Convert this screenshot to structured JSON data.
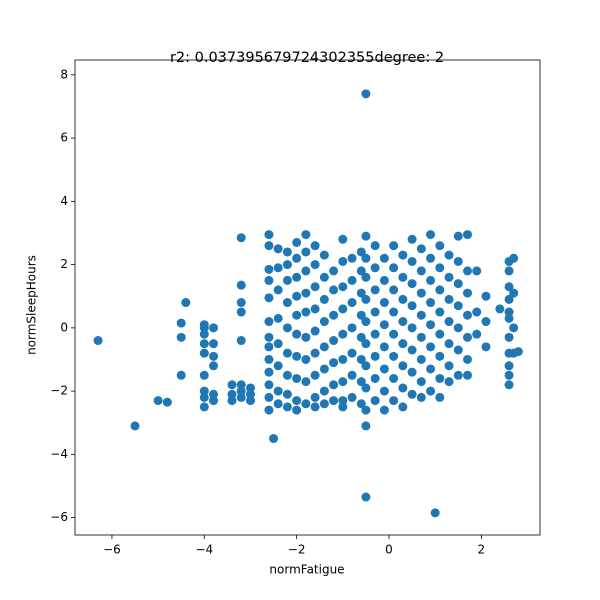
{
  "chart_data": {
    "type": "scatter",
    "title": "r2: 0.037395679724302355degree: 2",
    "x_label": "normFatigue",
    "y_label": "normSleepHours",
    "color": "#1f77b4",
    "xlim": [
      -6.8,
      3.27
    ],
    "ylim": [
      -6.55,
      8.47
    ],
    "xticks": [
      {
        "value": -6,
        "label": "−6"
      },
      {
        "value": -4,
        "label": "−4"
      },
      {
        "value": -2,
        "label": "−2"
      },
      0,
      2
    ],
    "yticks": [
      {
        "value": -6,
        "label": "−6"
      },
      {
        "value": -4,
        "label": "−4"
      },
      {
        "value": -2,
        "label": "−2"
      },
      0,
      2,
      4,
      6,
      8
    ],
    "x": [
      -6.3,
      -5.5,
      -5,
      -4.8,
      -4.4,
      -4.5,
      -4.5,
      -4.5,
      -0.5,
      -0.5,
      1,
      -2.5,
      -0.5,
      -4,
      -4,
      -4,
      -4,
      -4,
      -4,
      -4,
      -4,
      -4,
      -3.8,
      -3.8,
      -3.8,
      -3.8,
      -3.8,
      -3.8,
      -3.4,
      -3.4,
      -3.4,
      -3.2,
      -3.2,
      -3.2,
      -3.2,
      -3.2,
      -3.2,
      -3.2,
      -3.2,
      -3,
      -3,
      -3,
      -2.6,
      -2.6,
      -2.6,
      -2.6,
      -2.6,
      -2.6,
      -2.6,
      -2.6,
      -2.6,
      -2.6,
      -2.6,
      -2.6,
      -2.6,
      -2.4,
      -2.4,
      -2.4,
      -2.4,
      -2.4,
      -2.4,
      -2.4,
      -2.4,
      -2.2,
      -2.2,
      -2.2,
      -2.2,
      -2.2,
      -2.2,
      -2.2,
      -2.2,
      -2.2,
      -2,
      -2,
      -2,
      -2,
      -2,
      -2,
      -2,
      -2,
      -2,
      -2,
      -1.8,
      -1.8,
      -1.8,
      -1.8,
      -1.8,
      -1.8,
      -1.8,
      -1.8,
      -1.8,
      -1.6,
      -1.6,
      -1.6,
      -1.6,
      -1.6,
      -1.6,
      -1.6,
      -1.6,
      -1.6,
      -1.4,
      -1.4,
      -1.4,
      -1.4,
      -1.4,
      -1.4,
      -1.4,
      -1.4,
      -1.2,
      -1.2,
      -1.2,
      -1.2,
      -1.2,
      -1.2,
      -1.2,
      -1,
      -1,
      -1,
      -1,
      -1,
      -1,
      -1,
      -1,
      -1,
      -0.8,
      -0.8,
      -0.8,
      -0.8,
      -0.8,
      -0.8,
      -0.8,
      -0.6,
      -0.6,
      -0.6,
      -0.6,
      -0.6,
      -0.6,
      -0.6,
      -0.6,
      -0.5,
      -0.5,
      -0.5,
      -0.5,
      -0.5,
      -0.5,
      -0.5,
      -0.5,
      -0.5,
      -0.3,
      -0.3,
      -0.3,
      -0.3,
      -0.3,
      -0.3,
      -0.3,
      -0.3,
      -0.1,
      -0.1,
      -0.1,
      -0.1,
      -0.1,
      -0.1,
      -0.1,
      -0.1,
      0.1,
      0.1,
      0.1,
      0.1,
      0.1,
      0.1,
      0.1,
      0.1,
      0.3,
      0.3,
      0.3,
      0.3,
      0.3,
      0.3,
      0.3,
      0.3,
      0.5,
      0.5,
      0.5,
      0.5,
      0.5,
      0.5,
      0.5,
      0.5,
      0.7,
      0.7,
      0.7,
      0.7,
      0.7,
      0.7,
      0.7,
      0.7,
      0.9,
      0.9,
      0.9,
      0.9,
      0.9,
      0.9,
      0.9,
      0.9,
      1.1,
      1.1,
      1.1,
      1.1,
      1.1,
      1.1,
      1.1,
      1.1,
      1.3,
      1.3,
      1.3,
      1.3,
      1.3,
      1.3,
      1.3,
      1.5,
      1.5,
      1.5,
      1.5,
      1.5,
      1.5,
      1.5,
      1.7,
      1.7,
      1.7,
      1.7,
      1.7,
      1.7,
      1.7,
      1.9,
      1.9,
      1.9,
      2.1,
      2.1,
      2.1,
      2.4,
      2.6,
      2.6,
      2.6,
      2.6,
      2.6,
      2.6,
      2.6,
      2.6,
      2.6,
      2.6,
      2.6,
      2.7,
      2.7,
      2.7,
      2.7,
      2.8
    ],
    "y": [
      -0.4,
      -3.1,
      -2.3,
      -2.35,
      0.8,
      0.15,
      -0.3,
      -1.5,
      7.4,
      -5.35,
      -5.85,
      -3.5,
      -3.1,
      -2.5,
      -2.2,
      -2,
      -1.5,
      -0.8,
      -0.5,
      -0.2,
      0,
      0.1,
      -2.3,
      -2.1,
      -1.2,
      -0.9,
      -0.5,
      0,
      -1.8,
      -2.1,
      -2.3,
      2.85,
      1.35,
      0.8,
      0.5,
      -0.4,
      -2,
      -2.2,
      -1.8,
      -2.1,
      -2.3,
      -1.9,
      2.95,
      2.6,
      1.85,
      1.5,
      0.95,
      0.2,
      -0.3,
      -0.6,
      -1,
      -1.4,
      -1.8,
      -2.2,
      -2.6,
      2.5,
      1.9,
      1.2,
      0.3,
      -0.5,
      -1.2,
      -2,
      -2.4,
      2.4,
      2,
      1.5,
      0.8,
      0,
      -0.8,
      -1.5,
      -2.1,
      -2.5,
      2.7,
      2.2,
      1.6,
      1,
      0.4,
      -0.2,
      -0.9,
      -1.6,
      -2.3,
      -2.6,
      2.95,
      2.4,
      1.8,
      1.1,
      0.5,
      -0.3,
      -1,
      -1.7,
      -2.4,
      2.6,
      2,
      1.3,
      0.6,
      -0.1,
      -0.8,
      -1.5,
      -2.2,
      -2.5,
      2.3,
      1.6,
      0.9,
      0.2,
      -0.6,
      -1.3,
      -2,
      -2.4,
      1.8,
      1.2,
      0.4,
      -0.4,
      -1.1,
      -1.8,
      -2.3,
      2.8,
      2.1,
      1.3,
      0.6,
      -0.2,
      -1,
      -1.7,
      -2.3,
      -2.5,
      2.2,
      1.5,
      0.8,
      0,
      -0.8,
      -1.5,
      -2.2,
      2.4,
      1.8,
      1.1,
      0.4,
      -0.3,
      -1,
      -1.7,
      -2.4,
      2.9,
      2.2,
      1.6,
      0.9,
      0.2,
      -0.5,
      -1.2,
      -1.9,
      -2.6,
      2.6,
      1.9,
      1.2,
      0.5,
      -0.2,
      -0.9,
      -1.6,
      -2.3,
      2.2,
      1.5,
      0.8,
      0.1,
      -0.6,
      -1.3,
      -2,
      -2.6,
      2.6,
      1.9,
      1.2,
      0.5,
      -0.2,
      -0.9,
      -1.6,
      -2.3,
      2.3,
      1.6,
      0.9,
      0.2,
      -0.5,
      -1.2,
      -1.9,
      -2.5,
      2.8,
      2.1,
      1.4,
      0.7,
      0,
      -0.7,
      -1.4,
      -2.1,
      2.5,
      1.8,
      1.1,
      0.4,
      -0.3,
      -1,
      -1.7,
      -2.2,
      2.95,
      2.2,
      1.5,
      0.8,
      0.1,
      -0.6,
      -1.3,
      -2,
      2.6,
      1.9,
      1.2,
      0.5,
      -0.2,
      -0.9,
      -1.6,
      -2.2,
      2.3,
      1.6,
      0.9,
      0.2,
      -0.5,
      -1.2,
      -1.7,
      2.9,
      2.1,
      1.4,
      0.7,
      0,
      -0.7,
      -1.5,
      2.95,
      1.8,
      1.1,
      0.4,
      -0.3,
      -1,
      -1.5,
      1.8,
      0.5,
      -0.2,
      1,
      0.2,
      -0.6,
      0.6,
      2.1,
      1.8,
      1.3,
      0.9,
      0.5,
      0.3,
      -0.3,
      -0.8,
      -1.2,
      -1.5,
      -1.8,
      2.2,
      1.1,
      0,
      -0.8,
      -0.75
    ]
  }
}
